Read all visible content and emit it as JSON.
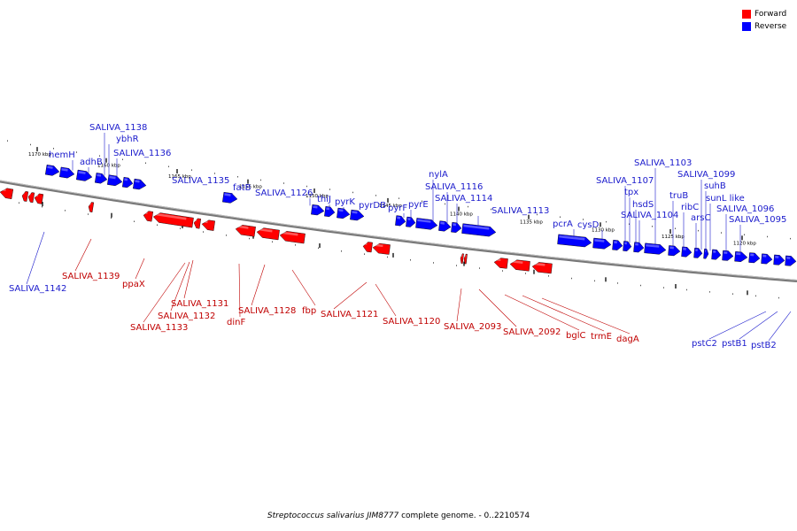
{
  "legend": {
    "items": [
      {
        "label": "Forward",
        "color": "#ff0000"
      },
      {
        "label": "Reverse",
        "color": "#0000ff"
      }
    ]
  },
  "caption": {
    "organism": "Streptococcus salivarius JIM8777",
    "suffix": " complete genome. - 0..2210574"
  },
  "colors": {
    "forward": "#ff0000",
    "reverse": "#0000ff",
    "backbone": "#777777",
    "label_forward": "#c00000",
    "label_reverse": "#1a1acc"
  },
  "ticks": [
    "1170 kbp",
    "1165 kbp",
    "1160 kbp",
    "1155 kbp",
    "1150 kbp",
    "1145 kbp",
    "1140 kbp",
    "1135 kbp",
    "1130 kbp",
    "1125 kbp",
    "1120 kbp"
  ],
  "genes_reverse": [
    "hemH",
    "adhB",
    "SALIVA_1138",
    "ybhR",
    "SALIVA_1136",
    "SALIVA_1135",
    "fatB",
    "SALIVA_1126",
    "thiJ",
    "pyrK",
    "pyrDB",
    "pyrF",
    "pyrE",
    "nylA",
    "SALIVA_1116",
    "SALIVA_1114",
    "SALIVA_1113",
    "pcrA",
    "cysD",
    "SALIVA_1107",
    "tpx",
    "hsdS",
    "SALIVA_1104",
    "SALIVA_1103",
    "truB",
    "ribC",
    "arsC",
    "SALIVA_1099",
    "suhB",
    "sunL like",
    "SALIVA_1096",
    "SALIVA_1095",
    "SALIVA_1142",
    "pstC2",
    "pstB1",
    "pstB2"
  ],
  "genes_forward": [
    "SALIVA_1139",
    "ppaX",
    "SALIVA_1131",
    "SALIVA_1132",
    "SALIVA_1133",
    "dinF",
    "SALIVA_1128",
    "fbp",
    "SALIVA_1121",
    "SALIVA_1120",
    "SALIVA_2093",
    "SALIVA_2092",
    "bglC",
    "trmE",
    "dagA"
  ]
}
